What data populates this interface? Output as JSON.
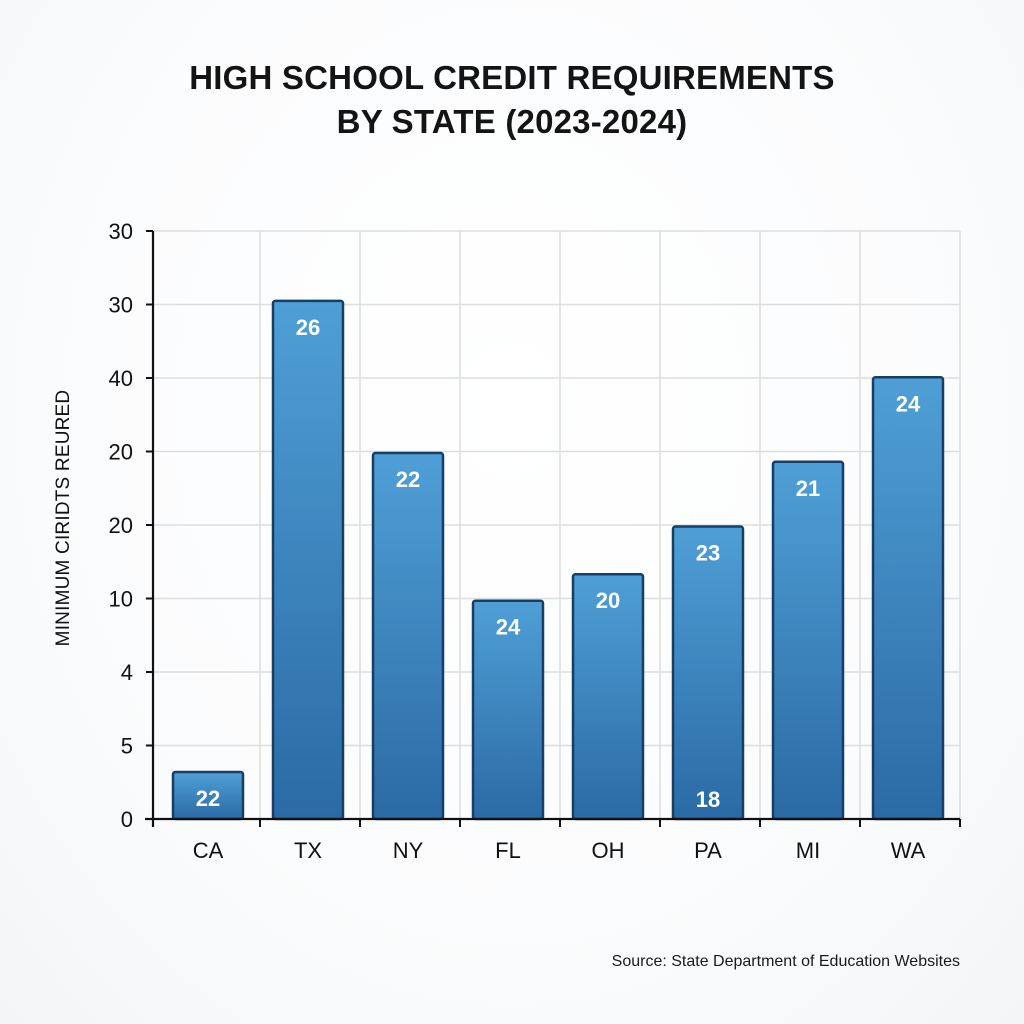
{
  "title_lines": [
    "HIGH SCHOOL CREDIT REQUIREMENTS",
    "BY STATE (2023-2024)"
  ],
  "source": "Source: State Department of Education Websites",
  "colors": {
    "bar_top": "#4f9fd6",
    "bar_bottom": "#2b6aa5",
    "bar_border": "#173e66",
    "grid": "#dddddd",
    "axis": "#111111",
    "label_text": "#ffffff"
  },
  "chart_data": {
    "type": "bar",
    "title": "HIGH SCHOOL CREDIT REQUIREMENTS BY STATE (2023-2024)",
    "xlabel": "",
    "ylabel": "MINIMUM CIRIDTS REURED",
    "categories": [
      "CA",
      "TX",
      "NY",
      "FL",
      "OH",
      "PA",
      "MI",
      "WA"
    ],
    "data_labels": [
      "22",
      "26",
      "22",
      "24",
      "20",
      "23",
      "21",
      "24"
    ],
    "extra_labels": [
      {
        "category": "PA",
        "text": "18",
        "position": "bottom"
      }
    ],
    "bar_heights_in_axis_units": [
      0.64,
      7.05,
      4.98,
      2.97,
      3.33,
      3.98,
      4.86,
      6.01
    ],
    "values": [
      22,
      26,
      22,
      24,
      20,
      23,
      21,
      24
    ],
    "y_tick_labels": [
      "0",
      "5",
      "4",
      "10",
      "20",
      "20",
      "40",
      "30",
      "30"
    ],
    "ylim": [
      0,
      8
    ],
    "grid": true,
    "legend": null,
    "source": "Source: State Department of Education Websites"
  }
}
